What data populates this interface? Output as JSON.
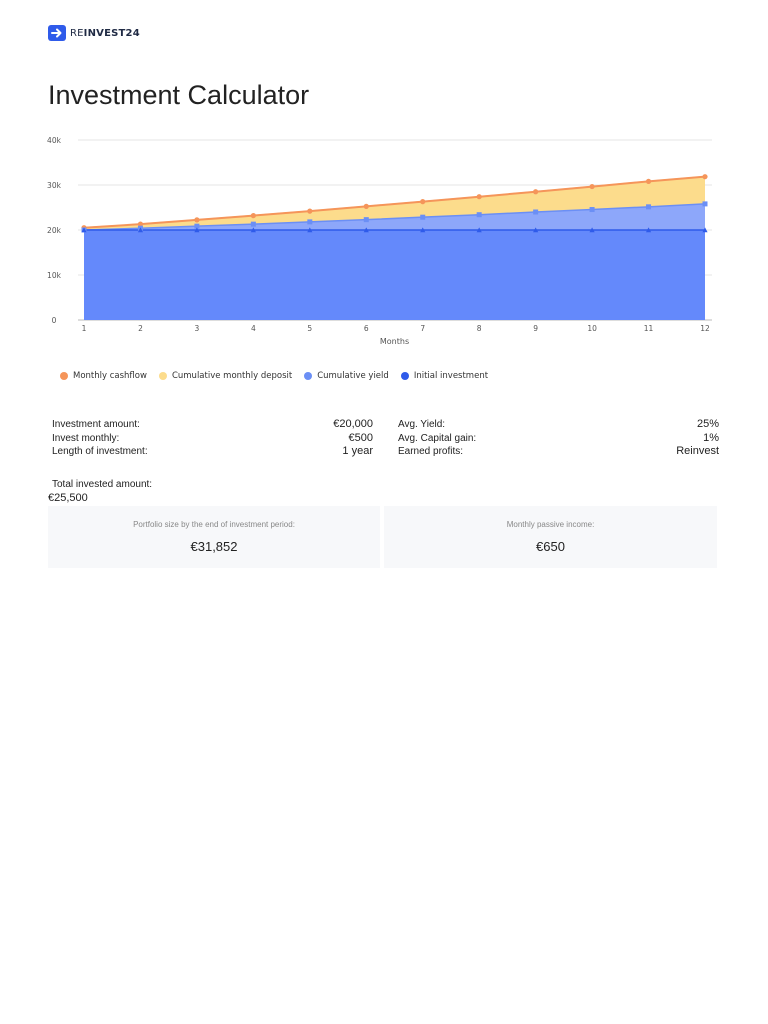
{
  "brand": {
    "prefix": "RE",
    "suffix": "INVEST24",
    "mark_color": "#2f5bea"
  },
  "page_title": "Investment Calculator",
  "chart_data": {
    "type": "area",
    "title": "",
    "xlabel": "Months",
    "ylabel": "",
    "x": [
      1,
      2,
      3,
      4,
      5,
      6,
      7,
      8,
      9,
      10,
      11,
      12
    ],
    "xlim": [
      1,
      12
    ],
    "ylim": [
      0,
      40000
    ],
    "y_ticks": [
      0,
      10000,
      20000,
      30000,
      40000
    ],
    "y_tick_labels": [
      "0",
      "10k",
      "20k",
      "30k",
      "40k"
    ],
    "grid": true,
    "legend_position": "bottom-left",
    "series": [
      {
        "name": "Monthly cashflow",
        "color": "#f5955a",
        "fill": "#fcdc8c",
        "marker": "circle",
        "values": [
          20500,
          21300,
          22250,
          23200,
          24200,
          25250,
          26300,
          27400,
          28500,
          29650,
          30800,
          31852
        ]
      },
      {
        "name": "Cumulative monthly deposit",
        "color": "#fcdc8c",
        "fill": "#fcdc8c",
        "marker": "none",
        "values": [
          20500,
          21300,
          22250,
          23200,
          24200,
          25250,
          26300,
          27400,
          28500,
          29650,
          30800,
          31852
        ]
      },
      {
        "name": "Cumulative yield",
        "color": "#6b8ff5",
        "fill": "#8da7fa",
        "marker": "square",
        "values": [
          20000,
          20400,
          20850,
          21300,
          21800,
          22300,
          22850,
          23400,
          24000,
          24550,
          25150,
          25800
        ]
      },
      {
        "name": "Initial investment",
        "color": "#2f5bea",
        "fill": "#6489fb",
        "marker": "triangle",
        "values": [
          20000,
          20000,
          20000,
          20000,
          20000,
          20000,
          20000,
          20000,
          20000,
          20000,
          20000,
          20000
        ]
      }
    ]
  },
  "legend": [
    {
      "label": "Monthly cashflow",
      "color": "#f5955a"
    },
    {
      "label": "Cumulative monthly deposit",
      "color": "#fcdc8c"
    },
    {
      "label": "Cumulative yield",
      "color": "#6b8ff5"
    },
    {
      "label": "Initial investment",
      "color": "#2f5bea"
    }
  ],
  "params_left": [
    {
      "label": "Investment amount:",
      "value": "€20,000"
    },
    {
      "label": "Invest monthly:",
      "value": "€500"
    },
    {
      "label": "Length of investment:",
      "value": "1 year"
    }
  ],
  "params_right": [
    {
      "label": "Avg. Yield:",
      "value": "25%"
    },
    {
      "label": "Avg. Capital gain:",
      "value": "1%"
    },
    {
      "label": "Earned profits:",
      "value": "Reinvest"
    }
  ],
  "total": {
    "label": "Total invested amount:",
    "value": "€25,500"
  },
  "results": [
    {
      "label": "Portfolio size by the end of investment period:",
      "value": "€31,852"
    },
    {
      "label": "Monthly passive income:",
      "value": "€650"
    }
  ]
}
